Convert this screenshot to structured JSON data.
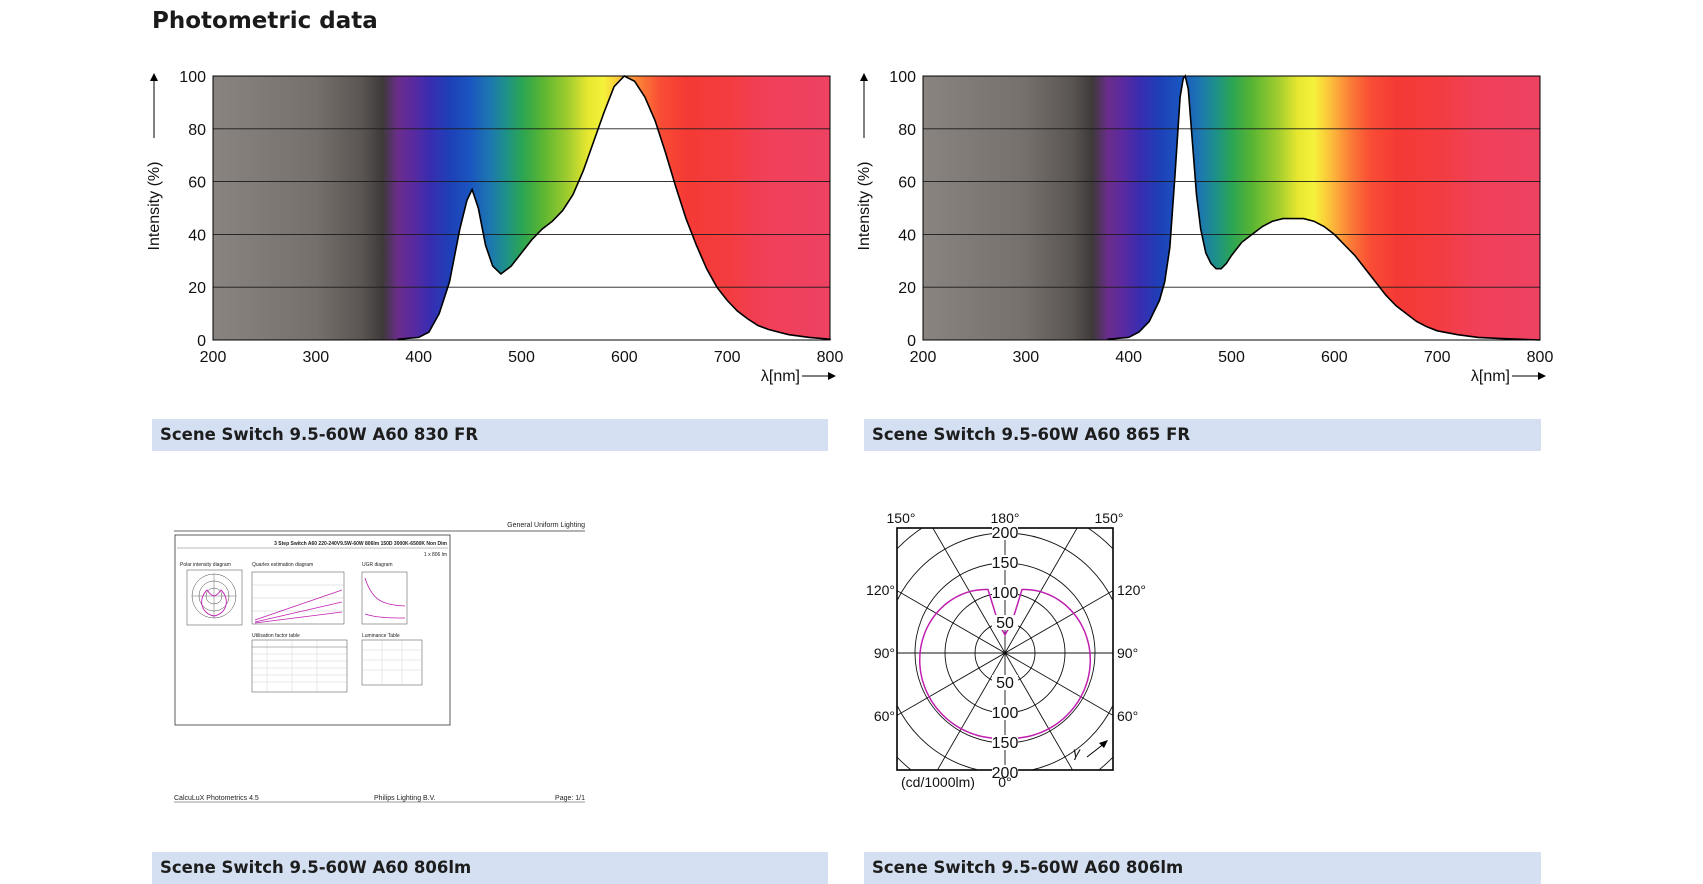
{
  "page": {
    "heading": "Photometric data"
  },
  "chart_data": [
    {
      "type": "area",
      "title": "",
      "xlabel": "λ[nm]",
      "ylabel": "Intensity (%)",
      "xlim": [
        200,
        800
      ],
      "ylim": [
        0,
        100
      ],
      "x_ticks": [
        "200",
        "300",
        "400",
        "500",
        "600",
        "700",
        "800"
      ],
      "y_ticks": [
        "0",
        "20",
        "40",
        "60",
        "80",
        "100"
      ],
      "grid": "horizontal",
      "caption": "Scene Switch 9.5-60W A60 830 FR",
      "series": [
        {
          "x": [
            380,
            400,
            410,
            420,
            430,
            440,
            447,
            452,
            458,
            465,
            472,
            480,
            490,
            500,
            510,
            520,
            530,
            540,
            550,
            560,
            570,
            580,
            590,
            600,
            610,
            620,
            630,
            640,
            650,
            660,
            670,
            680,
            690,
            700,
            710,
            720,
            730,
            740,
            750,
            760,
            780,
            800
          ],
          "values": [
            0.3,
            1,
            3,
            10,
            22,
            42,
            53,
            57,
            50,
            36,
            28,
            25,
            28,
            33,
            38,
            42,
            45,
            49,
            55,
            64,
            75,
            86,
            96,
            100,
            98,
            92,
            83,
            71,
            58,
            46,
            36,
            27,
            20,
            15,
            11,
            8,
            5.5,
            4,
            3,
            2,
            1,
            0.3
          ]
        }
      ]
    },
    {
      "type": "area",
      "title": "",
      "xlabel": "λ[nm]",
      "ylabel": "Intensity (%)",
      "xlim": [
        200,
        800
      ],
      "ylim": [
        0,
        100
      ],
      "x_ticks": [
        "200",
        "300",
        "400",
        "500",
        "600",
        "700",
        "800"
      ],
      "y_ticks": [
        "0",
        "20",
        "40",
        "60",
        "80",
        "100"
      ],
      "grid": "horizontal",
      "caption": "Scene Switch 9.5-60W A60 865 FR",
      "series": [
        {
          "x": [
            380,
            400,
            410,
            420,
            430,
            435,
            440,
            445,
            450,
            453,
            455,
            458,
            462,
            466,
            470,
            475,
            480,
            485,
            490,
            495,
            500,
            510,
            520,
            530,
            540,
            550,
            560,
            570,
            580,
            590,
            600,
            610,
            620,
            630,
            640,
            650,
            660,
            670,
            680,
            690,
            700,
            720,
            740,
            760,
            780,
            800
          ],
          "values": [
            0.3,
            1,
            3,
            7,
            15,
            22,
            35,
            62,
            92,
            99,
            100,
            95,
            75,
            55,
            42,
            33,
            29,
            27,
            27,
            29,
            32,
            37,
            40,
            43,
            45,
            46,
            46,
            46,
            45,
            43,
            40,
            36,
            32,
            27,
            22,
            17,
            13,
            10,
            7,
            5,
            3.5,
            2,
            1,
            0.6,
            0.3,
            0
          ]
        }
      ]
    }
  ],
  "captions": {
    "c1": "Scene Switch 9.5-60W A60 830 FR",
    "c2": "Scene Switch 9.5-60W A60 865 FR",
    "c3": "Scene Switch 9.5-60W A60 806lm",
    "c4": "Scene Switch 9.5-60W A60 806lm"
  },
  "thumbnail": {
    "header_right": "General Uniform Lighting",
    "title": "3 Step Switch A60 220-240V9.5W-60W 806lm 150D 3000K-6500K Non Dim",
    "lamp_flux": "1 x 806 lm",
    "panel1": "Polar intensity diagram",
    "panel2": "Quarlex estimation diagram",
    "panel3": "UGR diagram",
    "panel4": "Utilisation factor table",
    "panel5": "Luminance Table",
    "footer_left": "CalcuLuX Photometrics 4.5",
    "footer_mid": "Philips Lighting B.V.",
    "footer_right": "Page: 1/1"
  },
  "polar": {
    "angle_labels": {
      "top_left": "150°",
      "top_mid": "180°",
      "top_right": "150°",
      "l120": "120°",
      "r120": "120°",
      "l90": "90°",
      "r90": "90°",
      "l60": "60°",
      "r60": "60°",
      "bottom": "0°"
    },
    "radial_ticks": [
      "50",
      "100",
      "150",
      "200"
    ],
    "unit": "(cd/1000lm)",
    "gamma_label": "γ",
    "curve_color": "#c020b0"
  }
}
